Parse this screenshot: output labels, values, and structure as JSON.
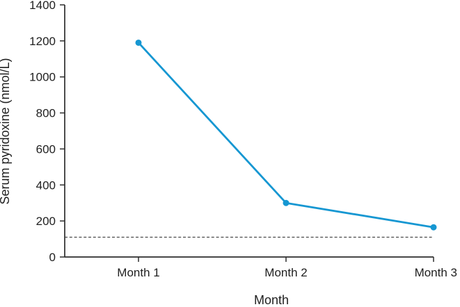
{
  "chart_data": {
    "type": "line",
    "title": "",
    "xlabel": "Month",
    "ylabel": "Serum pyridoxine (nmol/L)",
    "categories": [
      "Month 1",
      "Month 2",
      "Month 3"
    ],
    "series": [
      {
        "values": [
          1190,
          300,
          165
        ],
        "color": "#1697d2",
        "marker": "circle"
      }
    ],
    "reference_line": {
      "value": 110,
      "style": "dashed",
      "color": "#4a4a4a"
    },
    "ylim": [
      0,
      1400
    ],
    "yticks": [
      0,
      200,
      400,
      600,
      800,
      1000,
      1200,
      1400
    ],
    "grid": false,
    "legend": "none",
    "background": "#ffffff",
    "axis_color": "#2d2d2d",
    "text_color": "#1f1f1f"
  }
}
